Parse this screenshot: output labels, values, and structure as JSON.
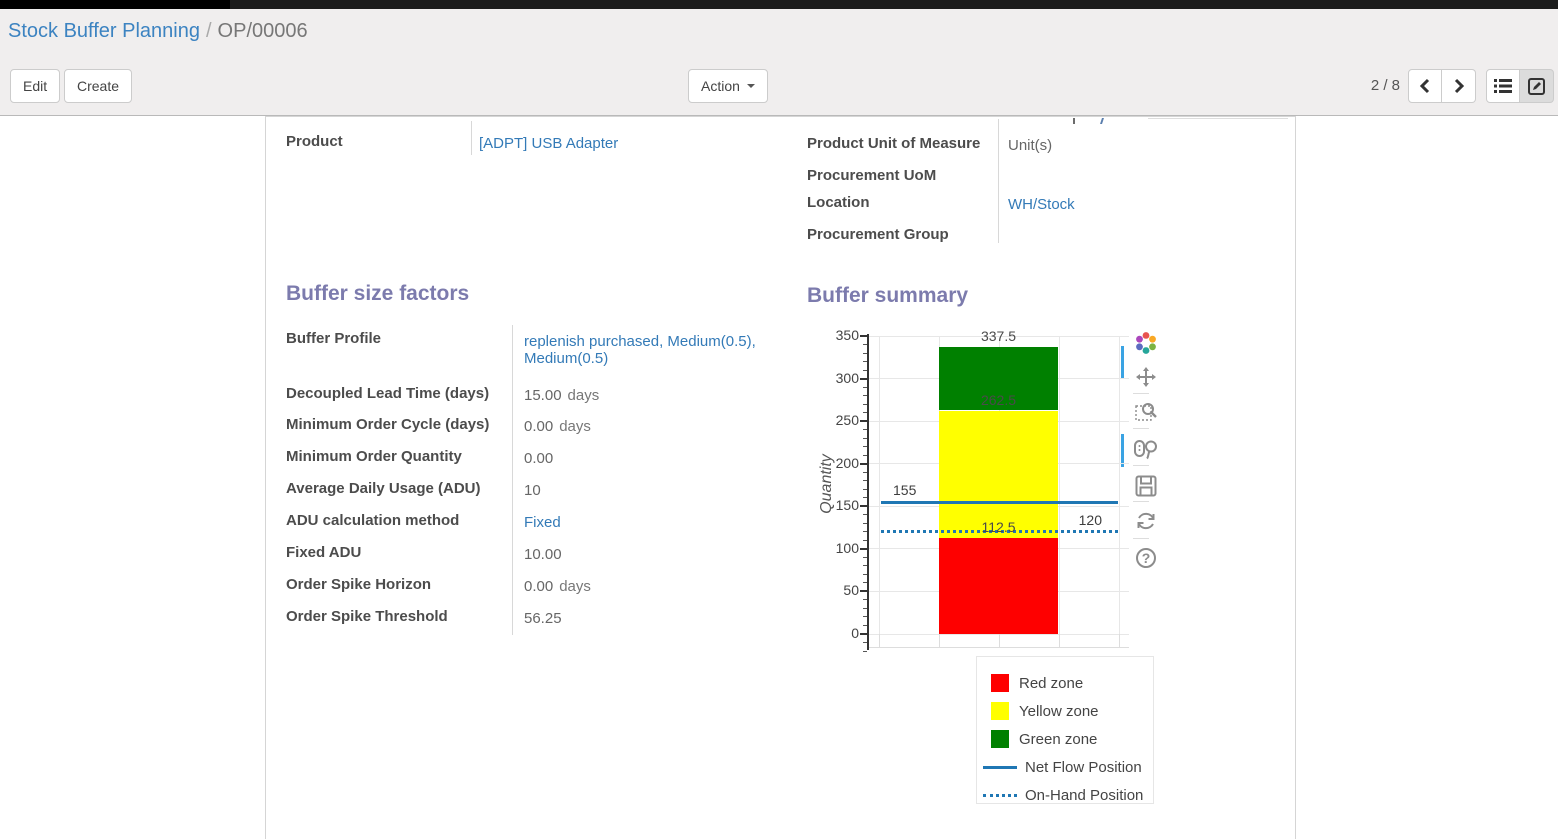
{
  "breadcrumb": {
    "parent": "Stock Buffer Planning",
    "separator": "/",
    "current": "OP/00006"
  },
  "control_panel": {
    "edit_label": "Edit",
    "create_label": "Create",
    "action_label": "Action",
    "pager": "2 / 8",
    "icons": [
      "chevron-left-icon",
      "chevron-right-icon",
      "list-view-icon",
      "form-view-icon"
    ]
  },
  "form": {
    "product": {
      "label": "Product",
      "value": "[ADPT] USB Adapter"
    },
    "right_info": [
      {
        "label": "Product Unit of Measure",
        "value": "Unit(s)"
      },
      {
        "label": "Procurement UoM",
        "value": ""
      },
      {
        "label": "Location",
        "value": "WH/Stock"
      },
      {
        "label": "Procurement Group",
        "value": ""
      }
    ],
    "buffer_size_factors": {
      "title": "Buffer size factors",
      "rows": [
        {
          "label": "Buffer Profile",
          "value": "replenish purchased, Medium(0.5), Medium(0.5)"
        },
        {
          "label": "Decoupled Lead Time (days)",
          "value": "15.00",
          "suffix": "days"
        },
        {
          "label": "Minimum Order Cycle (days)",
          "value": "0.00",
          "suffix": "days"
        },
        {
          "label": "Minimum Order Quantity",
          "value": "0.00"
        },
        {
          "label": "Average Daily Usage (ADU)",
          "value": "10"
        },
        {
          "label": "ADU calculation method",
          "value": "Fixed"
        },
        {
          "label": "Fixed ADU",
          "value": "10.00"
        },
        {
          "label": "Order Spike Horizon",
          "value": "0.00",
          "suffix": "days"
        },
        {
          "label": "Order Spike Threshold",
          "value": "56.25"
        }
      ]
    },
    "buffer_summary": {
      "title": "Buffer summary"
    }
  },
  "chart_data": {
    "type": "bar",
    "title": "Buffer summary",
    "ylabel": "Quantity",
    "ylim": [
      0,
      350
    ],
    "ytick_step": 50,
    "minor_tick_step": 10,
    "grid": true,
    "series": [
      {
        "name": "Red zone",
        "color": "#fe0000",
        "from": 0,
        "to": 112.5
      },
      {
        "name": "Yellow zone",
        "color": "#ffff00",
        "from": 112.5,
        "to": 262.5
      },
      {
        "name": "Green zone",
        "color": "#008000",
        "from": 262.5,
        "to": 337.5
      }
    ],
    "boundary_labels": [
      {
        "text": "337.5",
        "value": 337.5
      },
      {
        "text": "262.5",
        "value": 262.5
      },
      {
        "text": "112.5",
        "value": 112.5
      }
    ],
    "lines": [
      {
        "name": "Net Flow Position",
        "label": "155",
        "value": 155,
        "style": "solid",
        "color": "#1f77b4",
        "label_align": "left"
      },
      {
        "name": "On-Hand Position",
        "label": "120",
        "value": 120,
        "style": "dotted",
        "color": "#1f77b4",
        "label_align": "right"
      }
    ],
    "legend": [
      "Red zone",
      "Yellow zone",
      "Green zone",
      "Net Flow Position",
      "On-Hand Position"
    ],
    "legend_position": "bottom-right",
    "modebar_icons": [
      "plotly-logo-icon",
      "pan-icon",
      "box-zoom-icon",
      "lasso-zoom-icon",
      "save-icon",
      "reset-icon",
      "help-icon"
    ],
    "help_glyph": "?"
  }
}
